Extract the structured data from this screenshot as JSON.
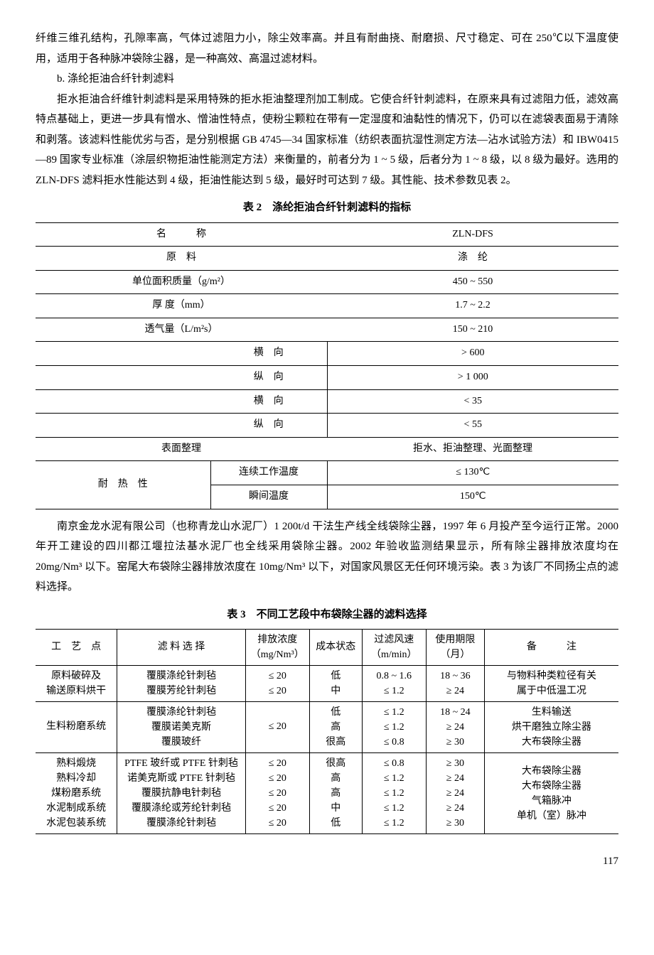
{
  "para1": "纤维三维孔结构，孔隙率高，气体过滤阻力小，除尘效率高。并且有耐曲挠、耐磨损、尺寸稳定、可在 250℃以下温度使用，适用于各种脉冲袋除尘器，是一种高效、高温过滤材料。",
  "para_b": "b. 涤纶拒油合纤针刺滤料",
  "para2": "拒水拒油合纤维针刺滤料是采用特殊的拒水拒油整理剂加工制成。它使合纤针刺滤料，在原来具有过滤阻力低，滤效高特点基础上，更进一步具有憎水、憎油性特点，使粉尘颗粒在带有一定湿度和油黏性的情况下，仍可以在滤袋表面易于清除和剥落。该滤料性能优劣与否，是分别根据 GB 4745—34 国家标准（纺织表面抗湿性测定方法—沾水试验方法）和 IBW0415—89 国家专业标准（涂层织物拒油性能测定方法）来衡量的，前者分为 1 ~ 5 级，后者分为 1 ~ 8 级，以 8 级为最好。选用的 ZLN-DFS 滤料拒水性能达到 4 级，拒油性能达到 5 级，最好时可达到 7 级。其性能、技术参数见表 2。",
  "table2": {
    "caption": "表 2　涤纶拒油合纤针刺滤料的指标",
    "header_name": "名　　　称",
    "header_val": "ZLN-DFS",
    "rows": [
      {
        "name": "原　料",
        "val": "涤　纶"
      },
      {
        "name": "单位面积质量（g/m²）",
        "val": "450 ~ 550"
      },
      {
        "name": "厚 度（mm）",
        "val": "1.7 ~ 2.2"
      },
      {
        "name": "透气量（L/m²s）",
        "val": "150 ~ 210"
      }
    ],
    "dir_rows": [
      {
        "dir": "横　向",
        "val": "> 600"
      },
      {
        "dir": "纵　向",
        "val": "> 1 000"
      },
      {
        "dir": "横　向",
        "val": "< 35"
      },
      {
        "dir": "纵　向",
        "val": "< 55"
      }
    ],
    "surface": {
      "name": "表面整理",
      "val": "拒水、拒油整理、光面整理"
    },
    "heat_label": "耐　热　性",
    "heat_rows": [
      {
        "name": "连续工作温度",
        "val": "≤ 130℃"
      },
      {
        "name": "瞬间温度",
        "val": "150℃"
      }
    ]
  },
  "para3": "南京金龙水泥有限公司（也称青龙山水泥厂）1 200t/d 干法生产线全线袋除尘器，1997 年 6 月投产至今运行正常。2000 年开工建设的四川都江堰拉法基水泥厂也全线采用袋除尘器。2002 年验收监测结果显示，所有除尘器排放浓度均在 20mg/Nm³ 以下。窑尾大布袋除尘器排放浓度在 10mg/Nm³ 以下，对国家风景区无任何环境污染。表 3 为该厂不同扬尘点的滤料选择。",
  "table3": {
    "caption": "表 3　不同工艺段中布袋除尘器的滤料选择",
    "headers": {
      "c1": "工　艺　点",
      "c2": "滤 料 选 择",
      "c3": "排放浓度\n（mg/Nm³）",
      "c4": "成本状态",
      "c5": "过滤风速\n（m/min）",
      "c6": "使用期限\n（月）",
      "c7": "备　　　注"
    },
    "group1": {
      "c1": "原料破碎及\n输送原料烘干",
      "c2": "覆膜涤纶针刺毡\n覆膜芳纶针刺毡",
      "c3": "≤ 20\n≤ 20",
      "c4": "低\n中",
      "c5": "0.8 ~ 1.6\n≤ 1.2",
      "c6": "18 ~ 36\n≥ 24",
      "c7": "与物料种类粒径有关\n属于中低温工况"
    },
    "group2": {
      "c1": "生料粉磨系统",
      "c2": "覆膜涤纶针刺毡\n覆膜诺美克斯\n覆膜玻纤",
      "c3": "≤ 20",
      "c4": "低\n高\n很高",
      "c5": "≤ 1.2\n≤ 1.2\n≤ 0.8",
      "c6": "18 ~ 24\n≥ 24\n≥ 30",
      "c7": "生料输送\n烘干磨独立除尘器\n大布袋除尘器"
    },
    "group3": {
      "c1": "熟料煅烧\n熟料冷却\n煤粉磨系统\n水泥制成系统\n水泥包装系统",
      "c2": "PTFE 玻纤或 PTFE 针刺毡\n诺美克斯或 PTFE 针刺毡\n覆膜抗静电针刺毡\n覆膜涤纶或芳纶针刺毡\n覆膜涤纶针刺毡",
      "c3": "≤ 20\n≤ 20\n≤ 20\n≤ 20\n≤ 20",
      "c4": "很高\n高\n高\n中\n低",
      "c5": "≤ 0.8\n≤ 1.2\n≤ 1.2\n≤ 1.2\n≤ 1.2",
      "c6": "≥ 30\n≥ 24\n≥ 24\n≥ 24\n≥ 30",
      "c7": "大布袋除尘器\n大布袋除尘器\n气箱脉冲\n单机（室）脉冲"
    }
  },
  "page_number": "117"
}
